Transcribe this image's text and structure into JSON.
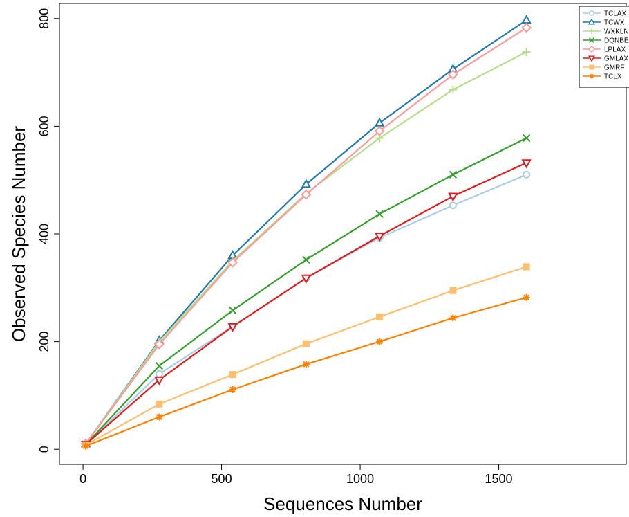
{
  "chart_data": {
    "type": "line",
    "title": "",
    "xlabel": "Sequences Number",
    "ylabel": "Observed Species Number",
    "xlim": [
      -85,
      1960
    ],
    "ylim": [
      -28,
      828
    ],
    "xticks": [
      0,
      500,
      1000,
      1500
    ],
    "yticks": [
      0,
      200,
      400,
      600,
      800
    ],
    "grid": false,
    "legend": "top-right",
    "x": [
      10,
      275,
      540,
      805,
      1070,
      1335,
      1600
    ],
    "series": [
      {
        "name": "TCLAX",
        "color": "#a6cee3",
        "marker": "circle",
        "values": [
          9,
          140,
          228,
          318,
          393,
          453,
          510
        ]
      },
      {
        "name": "TCWX",
        "color": "#1f78b4",
        "marker": "triangle-up",
        "values": [
          10,
          202,
          360,
          492,
          606,
          706,
          797
        ]
      },
      {
        "name": "WXKLN",
        "color": "#b2df8a",
        "marker": "plus",
        "values": [
          10,
          200,
          350,
          475,
          578,
          668,
          738
        ]
      },
      {
        "name": "DQNBE",
        "color": "#33a02c",
        "marker": "cross",
        "values": [
          9,
          155,
          258,
          352,
          437,
          510,
          578
        ]
      },
      {
        "name": "LPLAX",
        "color": "#fb9a99",
        "marker": "diamond",
        "values": [
          10,
          195,
          347,
          473,
          591,
          696,
          783
        ]
      },
      {
        "name": "GMLAX",
        "color": "#e31a1c",
        "marker": "triangle-down",
        "values": [
          9,
          129,
          228,
          318,
          396,
          470,
          532
        ]
      },
      {
        "name": "GMRF",
        "color": "#fdbf6f",
        "marker": "square",
        "values": [
          8,
          84,
          139,
          196,
          246,
          295,
          339
        ]
      },
      {
        "name": "TCLX",
        "color": "#ff7f00",
        "marker": "asterisk",
        "values": [
          6,
          60,
          111,
          158,
          200,
          244,
          282
        ]
      }
    ]
  }
}
